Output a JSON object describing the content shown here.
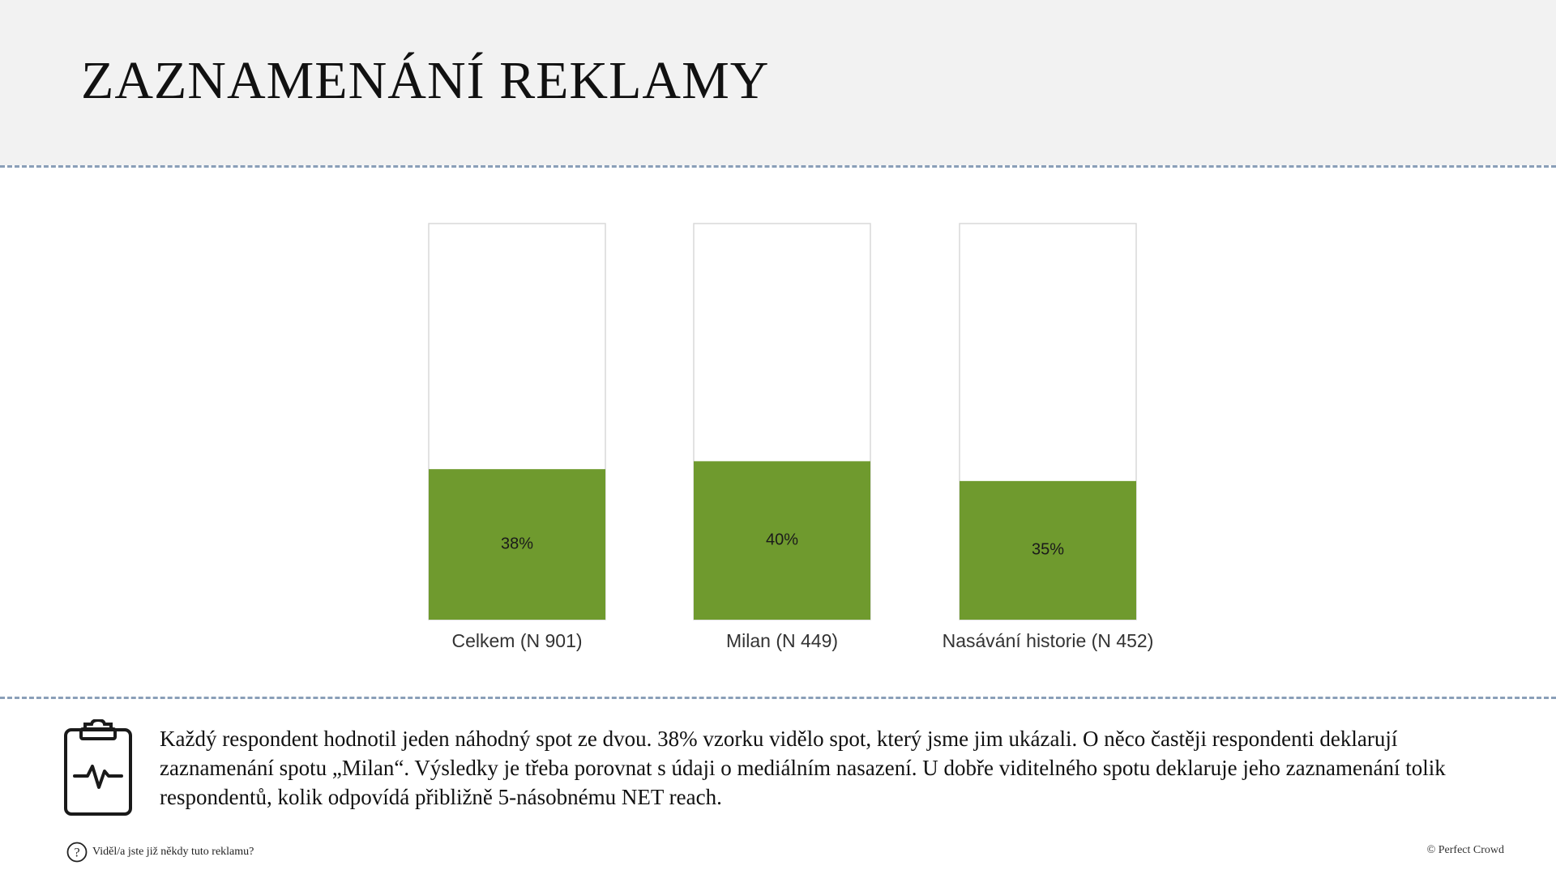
{
  "header": {
    "title": "ZAZNAMENÁNÍ REKLAMY"
  },
  "chart_data": {
    "type": "bar",
    "categories": [
      "Celkem (N 901)",
      "Milan (N 449)",
      "Nasávání historie (N 452)"
    ],
    "values": [
      38,
      40,
      35
    ],
    "value_labels": [
      "38%",
      "40%",
      "35%"
    ],
    "ylim": [
      0,
      100
    ],
    "title": "",
    "xlabel": "",
    "ylabel": "",
    "grid": false,
    "colors": {
      "bar": "#6f9a2e",
      "frame": "#d9d9d9"
    }
  },
  "summary": {
    "text": "Každý respondent hodnotil jeden náhodný spot ze dvou. 38% vzorku vidělo spot, který jsme jim ukázali. O něco častěji respondenti deklarují zaznamenání spotu „Milan“. Výsledky je třeba porovnat s údaji o mediálním nasazení. U dobře viditelného spotu deklaruje jeho zaznamenání tolik respondentů, kolik odpovídá přibližně 5-násobnému NET reach.",
    "icon": "clipboard-pulse-icon"
  },
  "footer": {
    "question": "Viděl/a jste již někdy tuto reklamu?",
    "question_icon": "help-circle-icon",
    "copyright": "© Perfect Crowd"
  }
}
